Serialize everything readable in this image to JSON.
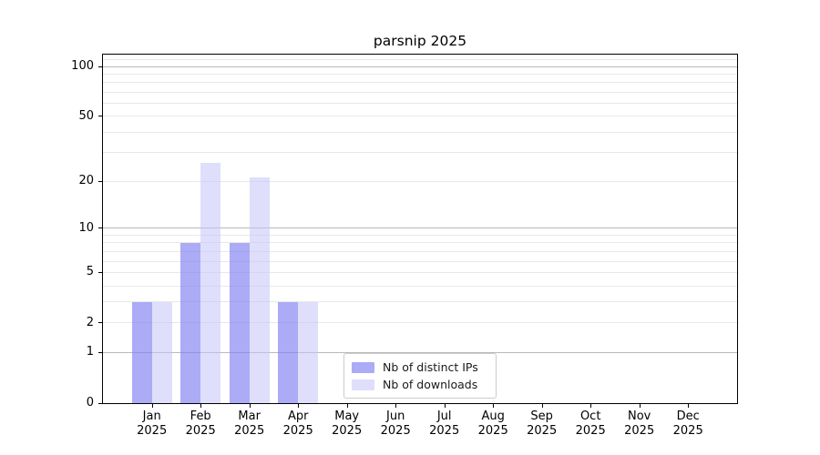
{
  "chart_data": {
    "type": "bar",
    "title": "parsnip 2025",
    "categories": [
      "Jan",
      "Feb",
      "Mar",
      "Apr",
      "May",
      "Jun",
      "Jul",
      "Aug",
      "Sep",
      "Oct",
      "Nov",
      "Dec"
    ],
    "category_year": "2025",
    "series": [
      {
        "name": "Nb of distinct IPs",
        "color": "rgba(128,128,242,0.66)",
        "values": [
          3,
          8,
          8,
          3,
          0,
          0,
          0,
          0,
          0,
          0,
          0,
          0
        ]
      },
      {
        "name": "Nb of downloads",
        "color": "rgba(197,197,248,0.55)",
        "values": [
          3,
          26,
          21,
          3,
          0,
          0,
          0,
          0,
          0,
          0,
          0,
          0
        ]
      }
    ],
    "yscale": "log1p",
    "ylim": [
      0,
      117
    ],
    "ytick_values": [
      0,
      1,
      2,
      5,
      10,
      20,
      50,
      100
    ],
    "y_major_gridlines": [
      1,
      10,
      100
    ],
    "y_minor_gridlines": [
      2,
      3,
      4,
      5,
      6,
      7,
      8,
      9,
      20,
      30,
      40,
      50,
      60,
      70,
      80,
      90,
      110
    ],
    "grid": "horizontal",
    "legend_position": "bottom-center",
    "colors": {
      "grid_major": "#b9b9b9",
      "grid_minor": "#e8e8e8",
      "spine": "#000000",
      "text": "#000000",
      "legend_border": "#cccccc"
    }
  }
}
